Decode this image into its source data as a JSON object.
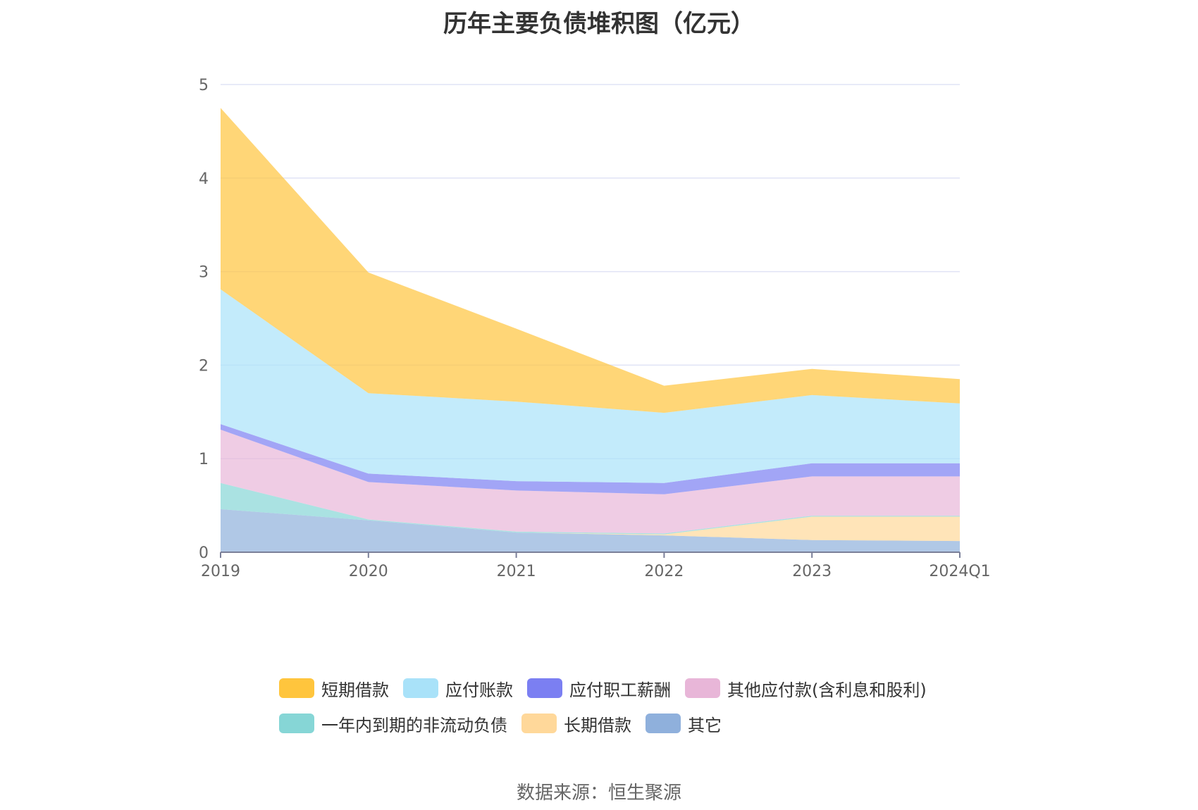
{
  "chart_data": {
    "type": "area",
    "title": "历年主要负债堆积图（亿元）",
    "stacked": true,
    "categories": [
      "2019",
      "2020",
      "2021",
      "2022",
      "2023",
      "2024Q1"
    ],
    "ylim": [
      0,
      5
    ],
    "yticks": [
      0,
      1,
      2,
      3,
      4,
      5
    ],
    "grid": true,
    "legend_position": "bottom",
    "series": [
      {
        "name": "其它",
        "color": "#8fb0dc",
        "values": [
          0.46,
          0.34,
          0.21,
          0.18,
          0.13,
          0.12
        ]
      },
      {
        "name": "长期借款",
        "color": "#ffd89a",
        "values": [
          0.0,
          0.0,
          0.0,
          0.01,
          0.25,
          0.26
        ]
      },
      {
        "name": "一年内到期的非流动负债",
        "color": "#86d6d6",
        "values": [
          0.28,
          0.01,
          0.01,
          0.01,
          0.01,
          0.01
        ]
      },
      {
        "name": "其他应付款(含利息和股利)",
        "color": "#e8b6d8",
        "values": [
          0.57,
          0.4,
          0.44,
          0.42,
          0.42,
          0.42
        ]
      },
      {
        "name": "应付职工薪酬",
        "color": "#7b7ff2",
        "values": [
          0.06,
          0.09,
          0.1,
          0.12,
          0.14,
          0.14
        ]
      },
      {
        "name": "应付账款",
        "color": "#a9e2f9",
        "values": [
          1.44,
          0.86,
          0.85,
          0.75,
          0.73,
          0.64
        ]
      },
      {
        "name": "短期借款",
        "color": "#ffc53d",
        "values": [
          1.94,
          1.29,
          0.78,
          0.29,
          0.28,
          0.26
        ]
      }
    ]
  },
  "legend": {
    "row1": [
      {
        "name": "短期借款",
        "color": "#ffc53d"
      },
      {
        "name": "应付账款",
        "color": "#a9e2f9"
      },
      {
        "name": "应付职工薪酬",
        "color": "#7b7ff2"
      },
      {
        "name": "其他应付款(含利息和股利)",
        "color": "#e8b6d8"
      }
    ],
    "row2": [
      {
        "name": "一年内到期的非流动负债",
        "color": "#86d6d6"
      },
      {
        "name": "长期借款",
        "color": "#ffd89a"
      },
      {
        "name": "其它",
        "color": "#8fb0dc"
      }
    ]
  },
  "source": "数据来源：恒生聚源"
}
